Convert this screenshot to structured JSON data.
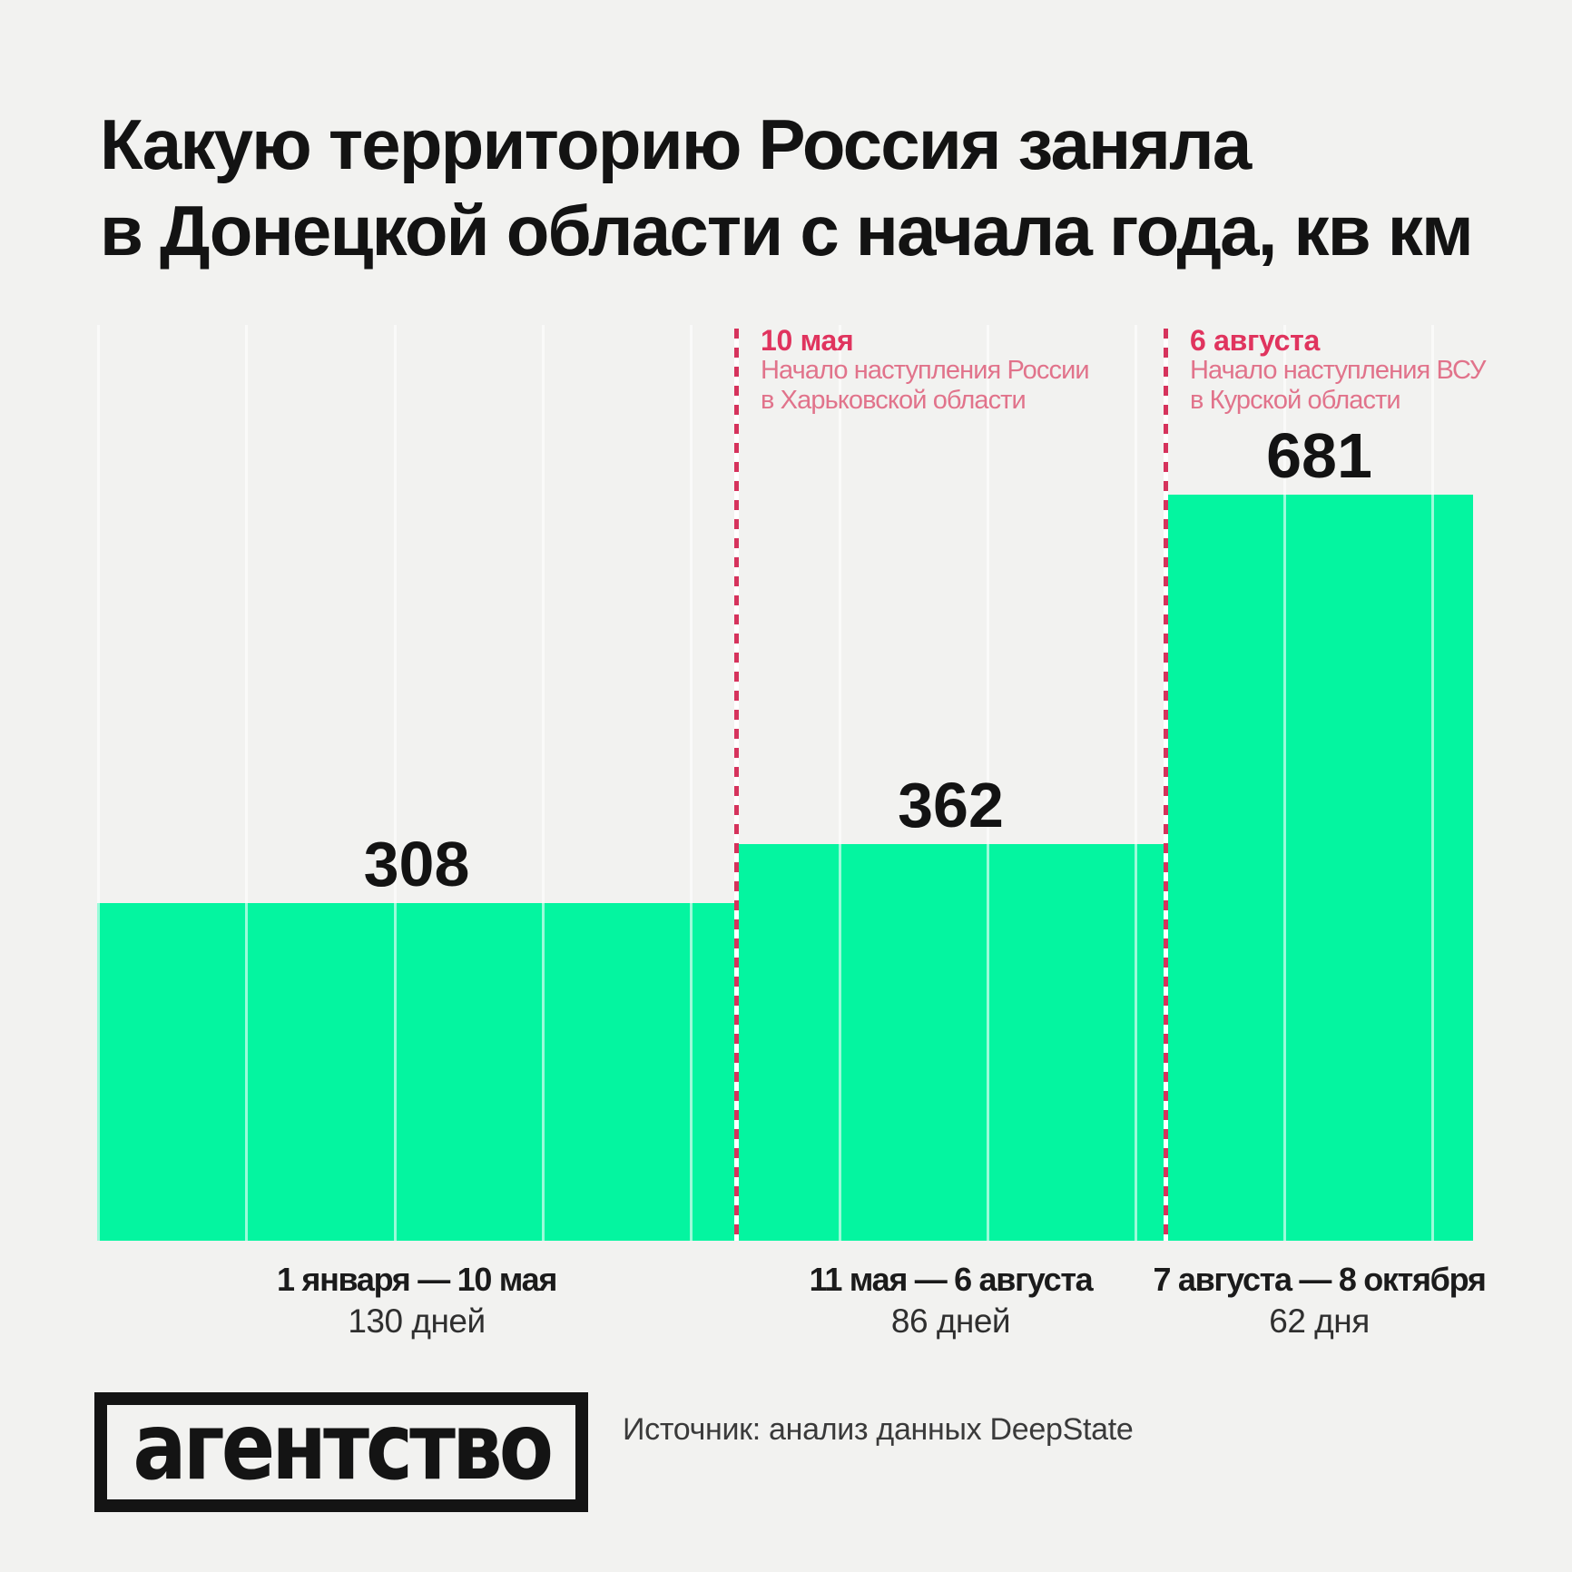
{
  "title": {
    "line1": "Какую территорию Россия заняла",
    "line2": "в Донецкой области с начала года, кв км"
  },
  "chart_data": {
    "type": "bar",
    "title": "Какую территорию Россия заняла в Донецкой области с начала года, кв км",
    "unit": "кв км",
    "categories": [
      "1 января — 10 мая",
      "11 мая — 6 августа",
      "7 августа — 8 октября"
    ],
    "durations": [
      "130 дней",
      "86 дней",
      "62 дня"
    ],
    "values": [
      308,
      362,
      681
    ],
    "annotations": [
      {
        "date": "10 мая",
        "desc_line1": "Начало наступления России",
        "desc_line2": "в Харьковской области"
      },
      {
        "date": "6 августа",
        "desc_line1": "Начало наступления ВСУ",
        "desc_line2": "в Курской области"
      }
    ],
    "x_axis": {
      "start": "1 января",
      "end": "8 октября",
      "gridlines": "monthly"
    },
    "colors": {
      "bar": "#04F5A0",
      "background": "#F2F2F0",
      "annotation_accent": "#E0345E",
      "annotation_text": "#E1738B",
      "text": "#131313"
    }
  },
  "footer": {
    "logo": "агентство",
    "source": "Источник: анализ данных DeepState"
  }
}
